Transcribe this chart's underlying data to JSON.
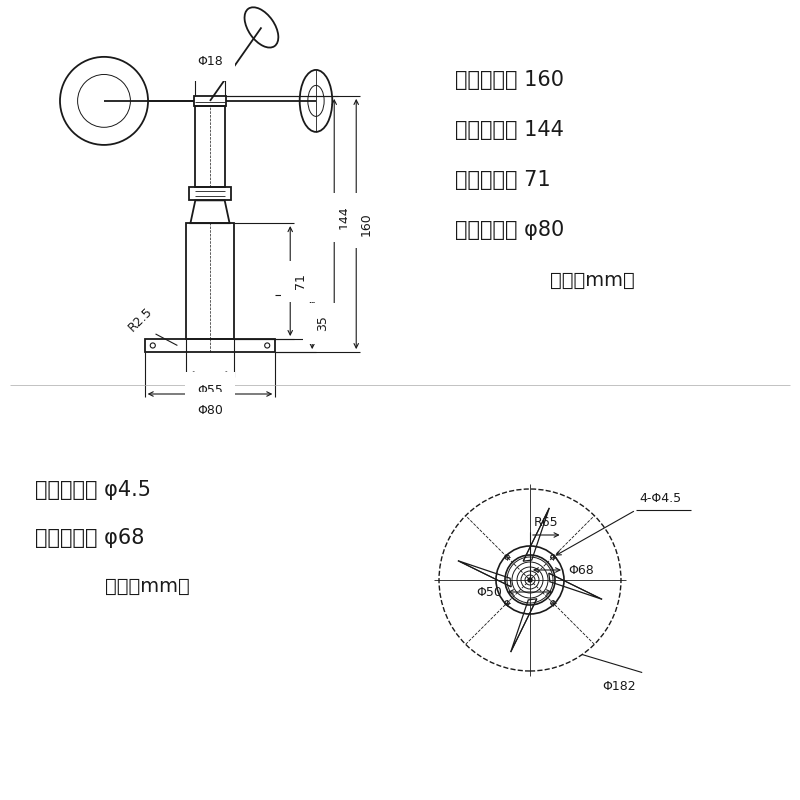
{
  "bg_color": "#ffffff",
  "line_color": "#1a1a1a",
  "text_color": "#1a1a1a",
  "specs_right": [
    [
      "整体高度：",
      "160"
    ],
    [
      "主轴高度：",
      "144"
    ],
    [
      "底座高度：",
      "71"
    ],
    [
      "底座直径：",
      "φ80"
    ],
    [
      "单位（mm）",
      ""
    ]
  ],
  "specs_bottom_left": [
    [
      "安装孔径：",
      "φ4.5"
    ],
    [
      "分布直径：",
      "φ68"
    ],
    [
      "单位（mm）",
      ""
    ]
  ]
}
